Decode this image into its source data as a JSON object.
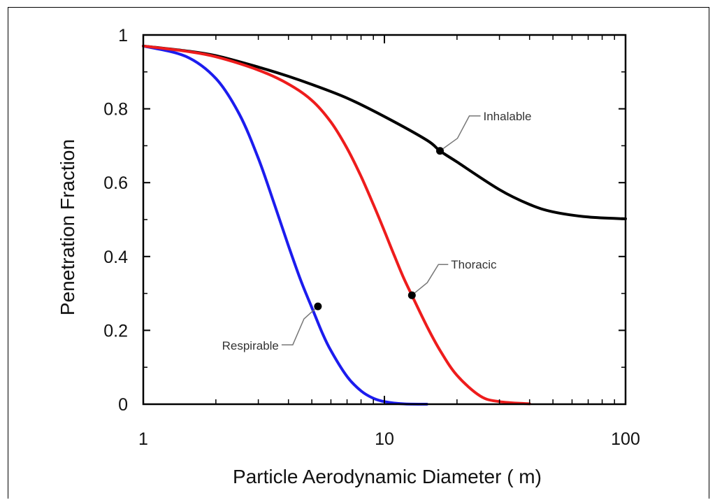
{
  "chart_data": {
    "type": "line",
    "title": "",
    "xlabel": "Particle Aerodynamic Diameter (   m)",
    "ylabel": "Penetration Fraction",
    "xscale": "log",
    "xlim": [
      1,
      100
    ],
    "ylim": [
      0,
      1
    ],
    "grid": false,
    "legend": "none",
    "x_ticks": [
      {
        "value": 1,
        "label": "1"
      },
      {
        "value": 10,
        "label": "10"
      },
      {
        "value": 100,
        "label": "100"
      }
    ],
    "y_ticks": [
      {
        "value": 0,
        "label": "0"
      },
      {
        "value": 0.2,
        "label": "0.2"
      },
      {
        "value": 0.4,
        "label": "0.4"
      },
      {
        "value": 0.6,
        "label": "0.6"
      },
      {
        "value": 0.8,
        "label": "0.8"
      },
      {
        "value": 1,
        "label": "1"
      }
    ],
    "series": [
      {
        "name": "Inhalable",
        "color": "#000000",
        "x": [
          1,
          1.5,
          2,
          3,
          4,
          5,
          7,
          10,
          15,
          17,
          20,
          30,
          40,
          50,
          70,
          100
        ],
        "y": [
          0.97,
          0.957,
          0.944,
          0.913,
          0.888,
          0.866,
          0.829,
          0.779,
          0.715,
          0.686,
          0.656,
          0.581,
          0.541,
          0.521,
          0.507,
          0.502
        ]
      },
      {
        "name": "Thoracic",
        "color": "#ee1c1c",
        "x": [
          1,
          1.5,
          2,
          3,
          4,
          5,
          6,
          7,
          8,
          9,
          10,
          11,
          12,
          13,
          15,
          17,
          20,
          25,
          30,
          40
        ],
        "y": [
          0.97,
          0.956,
          0.941,
          0.905,
          0.867,
          0.823,
          0.764,
          0.693,
          0.617,
          0.541,
          0.469,
          0.402,
          0.343,
          0.295,
          0.211,
          0.146,
          0.078,
          0.022,
          0.007,
          0.001
        ]
      },
      {
        "name": "Respirable",
        "color": "#1c1cee",
        "x": [
          1,
          1.5,
          2,
          2.5,
          3,
          3.5,
          4,
          4.5,
          5,
          5.5,
          6,
          7,
          8,
          9,
          10,
          12,
          15
        ],
        "y": [
          0.97,
          0.942,
          0.882,
          0.786,
          0.666,
          0.541,
          0.429,
          0.335,
          0.262,
          0.196,
          0.145,
          0.075,
          0.036,
          0.016,
          0.007,
          0.001,
          0
        ]
      }
    ],
    "annotations": [
      {
        "text": "Inhalable",
        "series": "Inhalable",
        "x": 17,
        "y": 0.686
      },
      {
        "text": "Thoracic",
        "series": "Thoracic",
        "x": 13,
        "y": 0.295
      },
      {
        "text": "Respirable",
        "series": "Respirable",
        "x": 5.3,
        "y": 0.265
      }
    ]
  }
}
